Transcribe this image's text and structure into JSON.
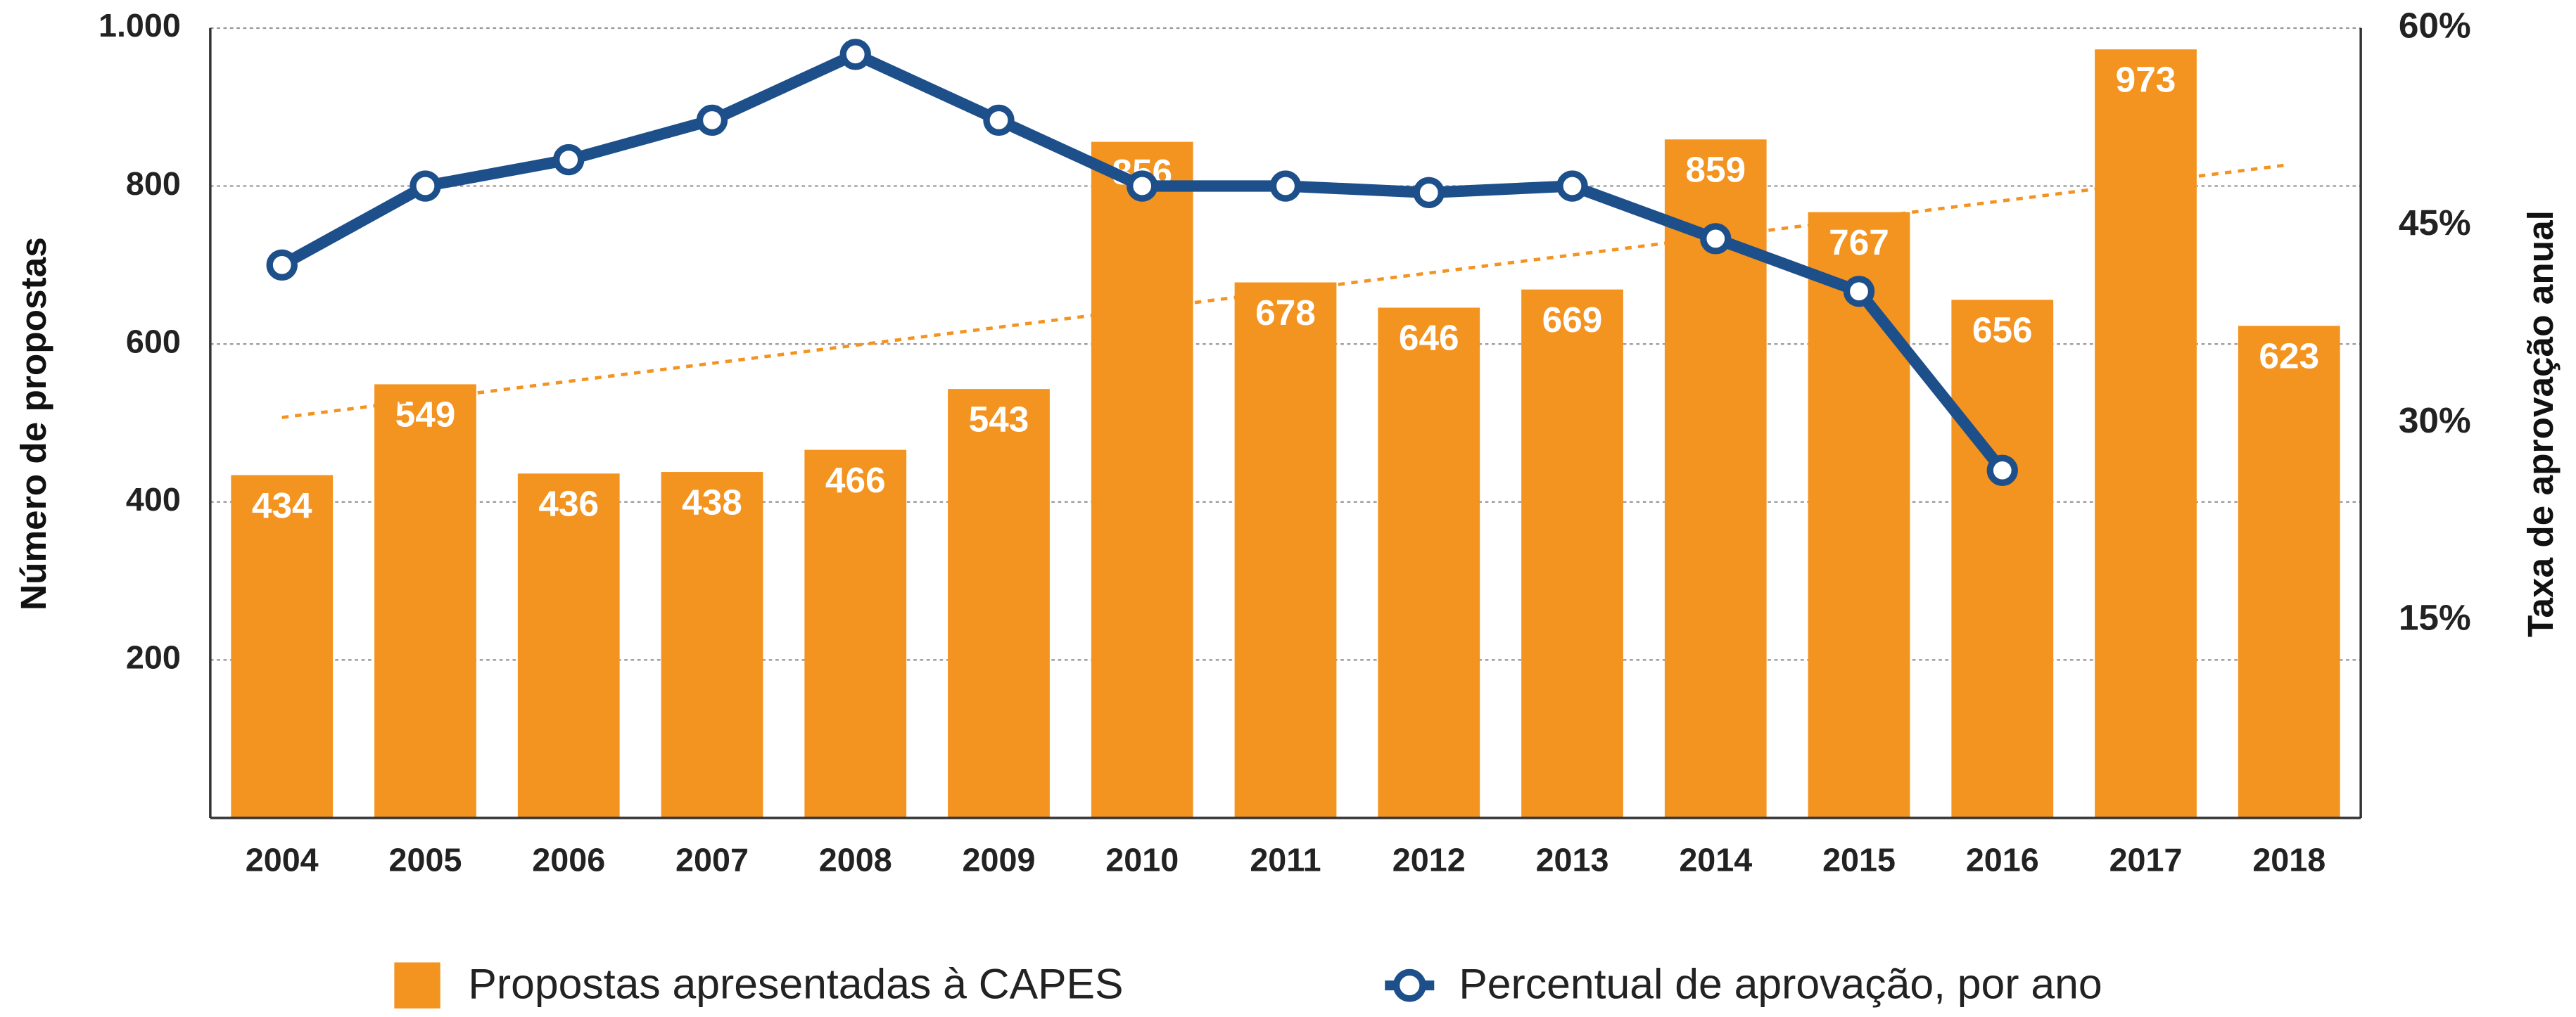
{
  "chart_data": {
    "type": "bar+line",
    "categories": [
      "2004",
      "2005",
      "2006",
      "2007",
      "2008",
      "2009",
      "2010",
      "2011",
      "2012",
      "2013",
      "2014",
      "2015",
      "2016",
      "2017",
      "2018"
    ],
    "y_label": "Número de propostas",
    "y2_label": "Taxa de aprovação anual",
    "ylim": [
      0,
      1000
    ],
    "yticks": [
      200,
      400,
      600,
      800,
      {
        "value": 1000,
        "label": "1.000"
      }
    ],
    "y2lim": [
      0,
      60
    ],
    "y2ticks": [
      {
        "value": 15,
        "label": "15%"
      },
      {
        "value": 30,
        "label": "30%"
      },
      {
        "value": 45,
        "label": "45%"
      },
      {
        "value": 60,
        "label": "60%"
      }
    ],
    "grid": true,
    "series": [
      {
        "name": "Propostas apresentadas à CAPES",
        "type": "bar",
        "color": "#f39320",
        "values": [
          434,
          549,
          436,
          438,
          466,
          543,
          856,
          678,
          646,
          669,
          859,
          767,
          656,
          973,
          623
        ]
      },
      {
        "name": "Percentual de aprovação, por ano",
        "type": "line",
        "axis": "y2",
        "color": "#1d4f8a",
        "values": [
          42,
          48,
          50,
          53,
          58,
          53,
          48,
          48,
          47.5,
          48,
          44,
          40,
          26.4,
          null,
          null
        ]
      }
    ],
    "trend": {
      "color": "#f39320",
      "start": 507,
      "end": 827
    }
  }
}
